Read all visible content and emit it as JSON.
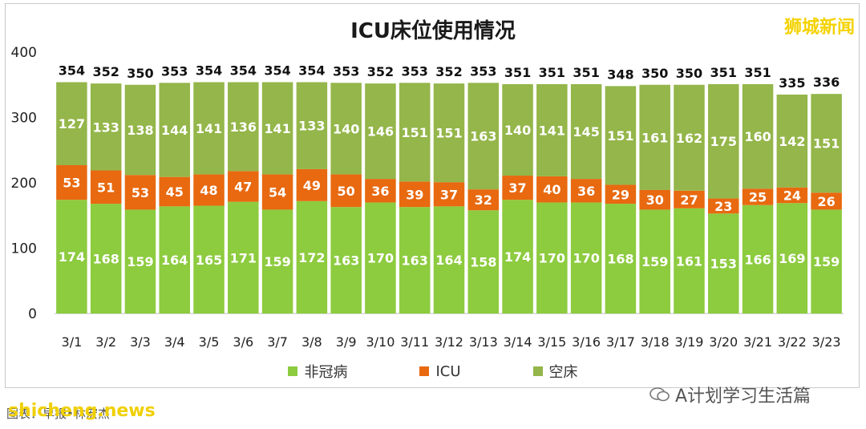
{
  "brand": "狮城新闻",
  "watermark": "A计划学习生活篇",
  "site": "shicheng.news",
  "source": "图表：早报•林宏杰",
  "colors": {
    "non_covid": "#8dcb3f",
    "icu": "#e8690f",
    "empty": "#94b64a",
    "axis_text": "#222222",
    "label_white": "#ffffff",
    "total_text": "#111111"
  },
  "chart_data": {
    "type": "bar",
    "stacked": true,
    "title": "ICU床位使用情况",
    "categories": [
      "3/1",
      "3/2",
      "3/3",
      "3/4",
      "3/5",
      "3/6",
      "3/7",
      "3/8",
      "3/9",
      "3/10",
      "3/11",
      "3/12",
      "3/13",
      "3/14",
      "3/15",
      "3/16",
      "3/17",
      "3/18",
      "3/19",
      "3/20",
      "3/21",
      "3/22",
      "3/23"
    ],
    "series": [
      {
        "name": "非冠病",
        "values": [
          174,
          168,
          159,
          164,
          165,
          171,
          159,
          172,
          163,
          170,
          163,
          164,
          158,
          174,
          170,
          170,
          168,
          159,
          161,
          153,
          166,
          169,
          159
        ]
      },
      {
        "name": "ICU",
        "values": [
          53,
          51,
          53,
          45,
          48,
          47,
          54,
          49,
          50,
          36,
          39,
          37,
          32,
          37,
          40,
          36,
          29,
          30,
          27,
          23,
          25,
          24,
          26
        ]
      },
      {
        "name": "空床",
        "values": [
          127,
          133,
          138,
          144,
          141,
          136,
          141,
          133,
          140,
          146,
          151,
          151,
          163,
          140,
          141,
          145,
          151,
          161,
          162,
          175,
          160,
          142,
          151
        ]
      }
    ],
    "totals": [
      354,
      352,
      350,
      353,
      354,
      354,
      354,
      354,
      353,
      352,
      353,
      352,
      353,
      351,
      351,
      351,
      348,
      350,
      350,
      351,
      351,
      335,
      336
    ],
    "ylim": [
      0,
      400
    ],
    "yticks": [
      0,
      100,
      200,
      300,
      400
    ],
    "legend_position": "bottom",
    "grid": false
  }
}
